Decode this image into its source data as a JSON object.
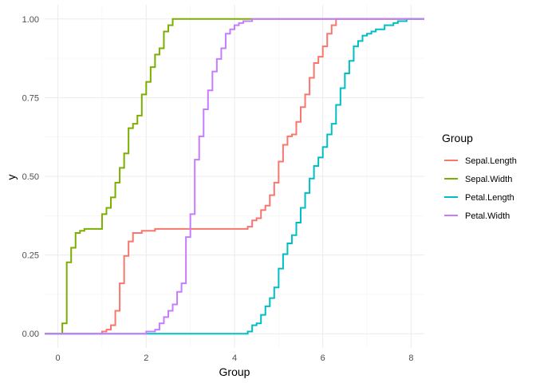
{
  "chart_data": {
    "type": "line",
    "subtype": "ecdf-step",
    "xlabel": "Group",
    "ylabel": "y",
    "xlim": [
      -0.3,
      8.3
    ],
    "ylim": [
      -0.045,
      1.045
    ],
    "x_ticks": [
      0,
      2,
      4,
      6,
      8
    ],
    "y_ticks": [
      0.0,
      0.25,
      0.5,
      0.75,
      1.0
    ],
    "x_tick_labels": [
      "0",
      "2",
      "4",
      "6",
      "8"
    ],
    "y_tick_labels": [
      "0.00",
      "0.25",
      "0.50",
      "0.75",
      "1.00"
    ],
    "grid": true,
    "legend": {
      "title": "Group",
      "position": "right"
    },
    "series": [
      {
        "name": "Sepal.Length",
        "color": "#F8766D",
        "points": [
          [
            1.0,
            0.007
          ],
          [
            1.1,
            0.013
          ],
          [
            1.2,
            0.027
          ],
          [
            1.3,
            0.073
          ],
          [
            1.4,
            0.16
          ],
          [
            1.5,
            0.247
          ],
          [
            1.6,
            0.293
          ],
          [
            1.7,
            0.32
          ],
          [
            1.9,
            0.327
          ],
          [
            2.2,
            0.333
          ],
          [
            4.3,
            0.34
          ],
          [
            4.4,
            0.36
          ],
          [
            4.5,
            0.367
          ],
          [
            4.6,
            0.393
          ],
          [
            4.7,
            0.407
          ],
          [
            4.8,
            0.44
          ],
          [
            4.9,
            0.48
          ],
          [
            5.0,
            0.547
          ],
          [
            5.1,
            0.6
          ],
          [
            5.2,
            0.627
          ],
          [
            5.3,
            0.633
          ],
          [
            5.4,
            0.673
          ],
          [
            5.5,
            0.72
          ],
          [
            5.6,
            0.76
          ],
          [
            5.7,
            0.813
          ],
          [
            5.8,
            0.86
          ],
          [
            5.9,
            0.88
          ],
          [
            6.0,
            0.913
          ],
          [
            6.1,
            0.953
          ],
          [
            6.2,
            0.98
          ],
          [
            6.3,
            1.0
          ]
        ]
      },
      {
        "name": "Sepal.Width",
        "color": "#7CAE00",
        "points": [
          [
            0.1,
            0.033
          ],
          [
            0.2,
            0.227
          ],
          [
            0.3,
            0.273
          ],
          [
            0.4,
            0.32
          ],
          [
            0.5,
            0.327
          ],
          [
            0.6,
            0.333
          ],
          [
            1.0,
            0.38
          ],
          [
            1.1,
            0.4
          ],
          [
            1.2,
            0.433
          ],
          [
            1.3,
            0.48
          ],
          [
            1.4,
            0.527
          ],
          [
            1.5,
            0.573
          ],
          [
            1.6,
            0.653
          ],
          [
            1.7,
            0.667
          ],
          [
            1.8,
            0.693
          ],
          [
            1.9,
            0.76
          ],
          [
            2.0,
            0.8
          ],
          [
            2.1,
            0.847
          ],
          [
            2.2,
            0.887
          ],
          [
            2.3,
            0.907
          ],
          [
            2.4,
            0.96
          ],
          [
            2.5,
            0.98
          ],
          [
            2.6,
            1.0
          ]
        ]
      },
      {
        "name": "Petal.Length",
        "color": "#00BFC4",
        "points": [
          [
            4.3,
            0.007
          ],
          [
            4.4,
            0.027
          ],
          [
            4.5,
            0.033
          ],
          [
            4.6,
            0.06
          ],
          [
            4.7,
            0.087
          ],
          [
            4.8,
            0.113
          ],
          [
            4.9,
            0.147
          ],
          [
            5.0,
            0.207
          ],
          [
            5.1,
            0.253
          ],
          [
            5.2,
            0.287
          ],
          [
            5.3,
            0.313
          ],
          [
            5.4,
            0.353
          ],
          [
            5.5,
            0.4
          ],
          [
            5.6,
            0.447
          ],
          [
            5.7,
            0.493
          ],
          [
            5.8,
            0.533
          ],
          [
            5.9,
            0.56
          ],
          [
            6.0,
            0.593
          ],
          [
            6.1,
            0.633
          ],
          [
            6.2,
            0.667
          ],
          [
            6.3,
            0.727
          ],
          [
            6.4,
            0.78
          ],
          [
            6.5,
            0.827
          ],
          [
            6.6,
            0.867
          ],
          [
            6.7,
            0.913
          ],
          [
            6.8,
            0.93
          ],
          [
            6.9,
            0.947
          ],
          [
            7.0,
            0.953
          ],
          [
            7.1,
            0.96
          ],
          [
            7.2,
            0.967
          ],
          [
            7.4,
            0.98
          ],
          [
            7.6,
            0.987
          ],
          [
            7.7,
            0.993
          ],
          [
            7.9,
            1.0
          ]
        ]
      },
      {
        "name": "Petal.Width",
        "color": "#C77CFF",
        "points": [
          [
            2.0,
            0.007
          ],
          [
            2.2,
            0.013
          ],
          [
            2.3,
            0.033
          ],
          [
            2.4,
            0.053
          ],
          [
            2.5,
            0.073
          ],
          [
            2.6,
            0.093
          ],
          [
            2.7,
            0.133
          ],
          [
            2.8,
            0.16
          ],
          [
            2.9,
            0.307
          ],
          [
            3.0,
            0.38
          ],
          [
            3.1,
            0.553
          ],
          [
            3.2,
            0.627
          ],
          [
            3.3,
            0.713
          ],
          [
            3.4,
            0.773
          ],
          [
            3.5,
            0.833
          ],
          [
            3.6,
            0.873
          ],
          [
            3.7,
            0.907
          ],
          [
            3.8,
            0.953
          ],
          [
            3.9,
            0.967
          ],
          [
            4.0,
            0.98
          ],
          [
            4.1,
            0.987
          ],
          [
            4.2,
            0.993
          ],
          [
            4.4,
            1.0
          ]
        ]
      }
    ]
  }
}
